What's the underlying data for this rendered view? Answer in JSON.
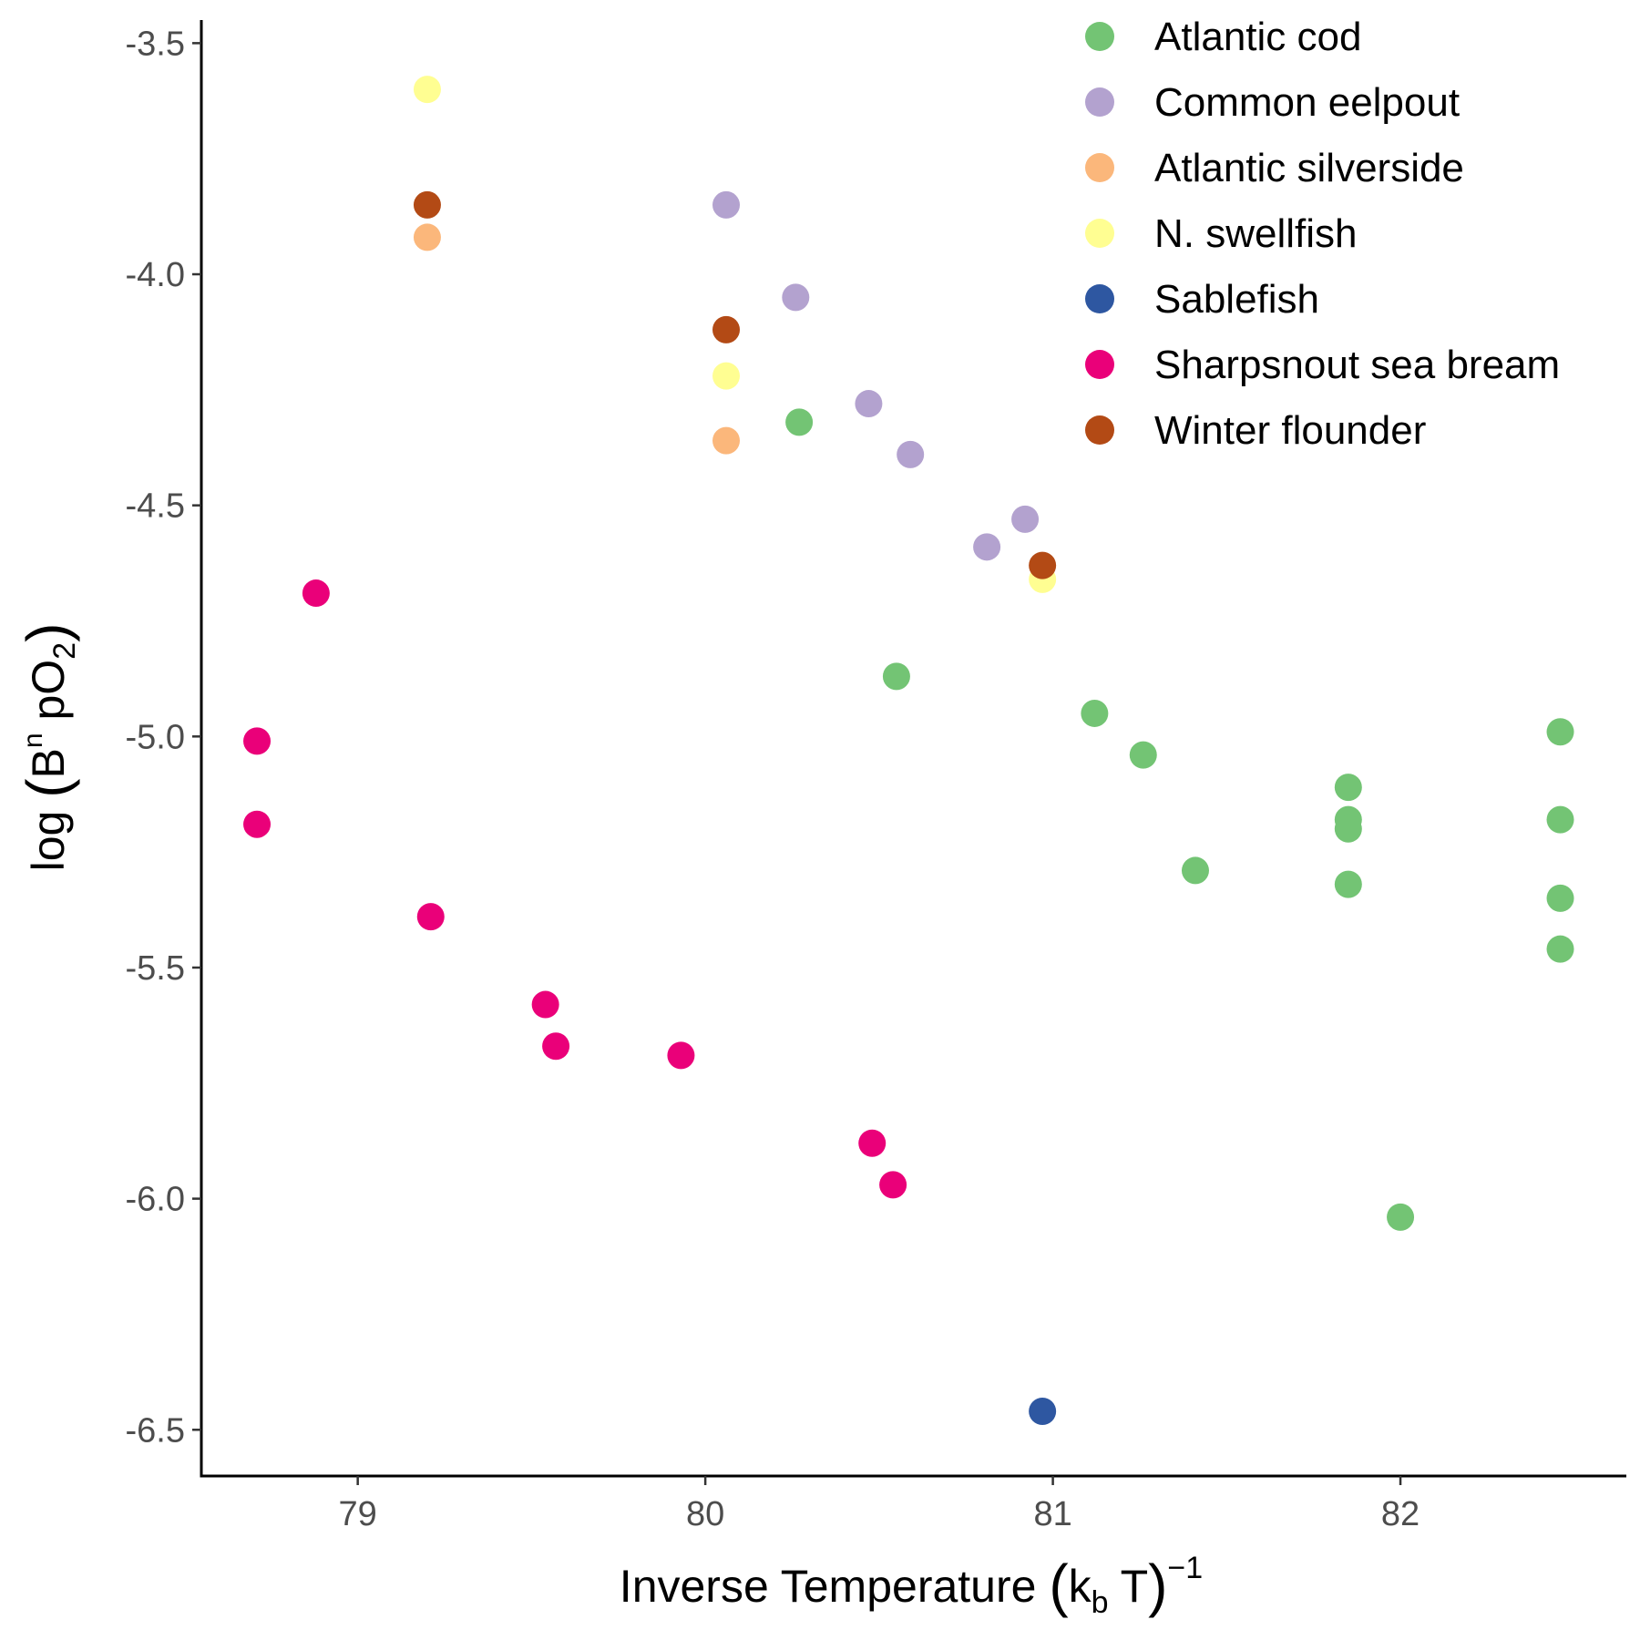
{
  "chart_data": {
    "type": "scatter",
    "xlabel": "Inverse Temperature (k_b T)^-1",
    "ylabel": "log (B^n pO_2)",
    "xlim": [
      78.55,
      82.65
    ],
    "ylim": [
      -6.6,
      -3.45
    ],
    "x_ticks": [
      79,
      80,
      81,
      82
    ],
    "x_tick_labels": [
      "79",
      "80",
      "81",
      "82"
    ],
    "y_ticks": [
      -3.5,
      -4.0,
      -4.5,
      -5.0,
      -5.5,
      -6.0,
      -6.5
    ],
    "y_tick_labels": [
      "-3.5",
      "-4.0",
      "-4.5",
      "-5.0",
      "-5.5",
      "-6.0",
      "-6.5"
    ],
    "grid": false,
    "legend_position": "top-right",
    "series": [
      {
        "name": "Atlantic cod",
        "color": "#73c474",
        "points": [
          [
            80.27,
            -4.32
          ],
          [
            80.55,
            -4.87
          ],
          [
            81.12,
            -4.95
          ],
          [
            81.26,
            -5.04
          ],
          [
            81.41,
            -5.29
          ],
          [
            81.85,
            -5.11
          ],
          [
            81.85,
            -5.18
          ],
          [
            81.85,
            -5.2
          ],
          [
            81.85,
            -5.32
          ],
          [
            82.0,
            -6.04
          ],
          [
            82.46,
            -4.99
          ],
          [
            82.46,
            -5.18
          ],
          [
            82.46,
            -5.35
          ],
          [
            82.46,
            -5.46
          ]
        ]
      },
      {
        "name": "Common eelpout",
        "color": "#b3a2cf",
        "points": [
          [
            80.06,
            -3.85
          ],
          [
            80.26,
            -4.05
          ],
          [
            80.47,
            -4.28
          ],
          [
            80.59,
            -4.39
          ],
          [
            80.81,
            -4.59
          ],
          [
            80.92,
            -4.53
          ]
        ]
      },
      {
        "name": "Atlantic silverside",
        "color": "#fbb77b",
        "points": [
          [
            79.2,
            -3.92
          ],
          [
            80.06,
            -4.36
          ]
        ]
      },
      {
        "name": "N. swellfish",
        "color": "#fffe92",
        "points": [
          [
            79.2,
            -3.6
          ],
          [
            80.06,
            -4.22
          ],
          [
            80.97,
            -4.66
          ]
        ]
      },
      {
        "name": "Sablefish",
        "color": "#2e57a1",
        "points": [
          [
            80.97,
            -6.46
          ]
        ]
      },
      {
        "name": "Sharpsnout sea bream",
        "color": "#ea0079",
        "points": [
          [
            78.71,
            -5.01
          ],
          [
            78.71,
            -5.19
          ],
          [
            78.88,
            -4.69
          ],
          [
            79.21,
            -5.39
          ],
          [
            79.54,
            -5.58
          ],
          [
            79.57,
            -5.67
          ],
          [
            79.93,
            -5.69
          ],
          [
            80.48,
            -5.88
          ],
          [
            80.54,
            -5.97
          ]
        ]
      },
      {
        "name": "Winter flounder",
        "color": "#b34a15",
        "points": [
          [
            79.2,
            -3.85
          ],
          [
            80.06,
            -4.12
          ],
          [
            80.97,
            -4.63
          ]
        ]
      }
    ]
  }
}
